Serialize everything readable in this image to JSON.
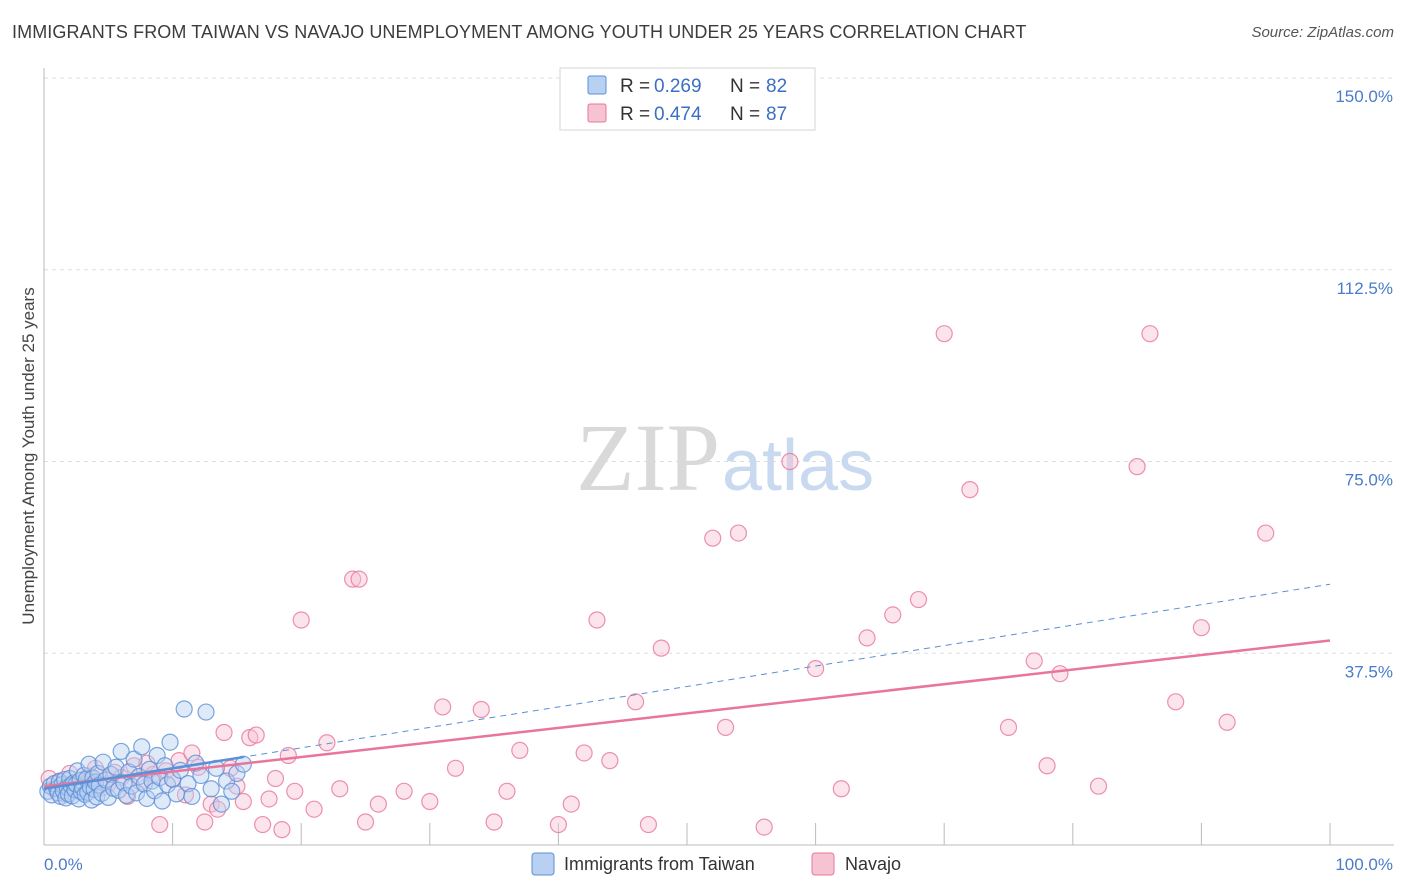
{
  "title": "IMMIGRANTS FROM TAIWAN VS NAVAJO UNEMPLOYMENT AMONG YOUTH UNDER 25 YEARS CORRELATION CHART",
  "source": "Source: ZipAtlas.com",
  "watermark": {
    "zip": "ZIP",
    "atlas": "atlas"
  },
  "colors": {
    "taiwan": "#5b8fd6",
    "taiwan_fill": "#b8d1f2",
    "navajo": "#e8759b",
    "navajo_fill": "#f6c3d3",
    "tick": "#4a7cc9",
    "grid": "#dddddd"
  },
  "legend": {
    "r_label": "R =",
    "n_label": "N =",
    "rows": [
      {
        "r": "0.269",
        "n": "82"
      },
      {
        "r": "0.474",
        "n": "87"
      }
    ]
  },
  "chart_data": {
    "type": "scatter",
    "title": "IMMIGRANTS FROM TAIWAN VS NAVAJO UNEMPLOYMENT AMONG YOUTH UNDER 25 YEARS CORRELATION CHART",
    "xlabel": "",
    "ylabel": "Unemployment Among Youth under 25 years",
    "xlim": [
      0,
      100
    ],
    "ylim": [
      0,
      150
    ],
    "x_tick_labels": [
      "0.0%",
      "100.0%"
    ],
    "y_ticks": [
      37.5,
      75.0,
      112.5,
      150.0
    ],
    "y_tick_labels": [
      "37.5%",
      "75.0%",
      "112.5%",
      "150.0%"
    ],
    "legend_position": "top-center",
    "series": [
      {
        "name": "Immigrants from Taiwan",
        "trend": {
          "x": [
            0,
            100
          ],
          "y": [
            11.0,
            51.0
          ],
          "style": "dashed"
        },
        "points": [
          [
            0.3,
            10.5
          ],
          [
            0.5,
            11.5
          ],
          [
            0.6,
            9.8
          ],
          [
            0.8,
            12.0
          ],
          [
            1.0,
            11.0
          ],
          [
            1.1,
            10.2
          ],
          [
            1.2,
            12.4
          ],
          [
            1.3,
            9.5
          ],
          [
            1.4,
            11.8
          ],
          [
            1.5,
            10.6
          ],
          [
            1.6,
            12.8
          ],
          [
            1.7,
            9.2
          ],
          [
            1.8,
            11.3
          ],
          [
            1.9,
            10.0
          ],
          [
            2.0,
            13.0
          ],
          [
            2.1,
            11.6
          ],
          [
            2.2,
            9.6
          ],
          [
            2.3,
            12.1
          ],
          [
            2.4,
            10.8
          ],
          [
            2.5,
            11.9
          ],
          [
            2.6,
            14.5
          ],
          [
            2.7,
            9.0
          ],
          [
            2.8,
            12.6
          ],
          [
            2.9,
            10.4
          ],
          [
            3.0,
            11.2
          ],
          [
            3.1,
            13.6
          ],
          [
            3.2,
            9.9
          ],
          [
            3.3,
            12.9
          ],
          [
            3.4,
            10.3
          ],
          [
            3.5,
            15.8
          ],
          [
            3.6,
            11.4
          ],
          [
            3.7,
            8.8
          ],
          [
            3.8,
            13.1
          ],
          [
            3.9,
            10.9
          ],
          [
            4.0,
            12.3
          ],
          [
            4.1,
            9.4
          ],
          [
            4.2,
            14.0
          ],
          [
            4.3,
            11.7
          ],
          [
            4.5,
            10.1
          ],
          [
            4.6,
            16.2
          ],
          [
            4.8,
            12.7
          ],
          [
            5.0,
            9.3
          ],
          [
            5.2,
            13.8
          ],
          [
            5.4,
            11.1
          ],
          [
            5.6,
            15.2
          ],
          [
            5.8,
            10.7
          ],
          [
            6.0,
            18.3
          ],
          [
            6.2,
            12.2
          ],
          [
            6.4,
            9.7
          ],
          [
            6.6,
            14.3
          ],
          [
            6.8,
            11.5
          ],
          [
            7.0,
            16.8
          ],
          [
            7.2,
            10.2
          ],
          [
            7.4,
            13.4
          ],
          [
            7.6,
            19.2
          ],
          [
            7.8,
            11.9
          ],
          [
            8.0,
            9.1
          ],
          [
            8.2,
            14.8
          ],
          [
            8.4,
            12.5
          ],
          [
            8.6,
            10.6
          ],
          [
            8.8,
            17.5
          ],
          [
            9.0,
            13.2
          ],
          [
            9.2,
            8.6
          ],
          [
            9.4,
            15.5
          ],
          [
            9.6,
            11.8
          ],
          [
            9.8,
            20.1
          ],
          [
            10.0,
            12.9
          ],
          [
            10.3,
            10.0
          ],
          [
            10.6,
            14.6
          ],
          [
            10.9,
            26.6
          ],
          [
            11.2,
            12.0
          ],
          [
            11.5,
            9.5
          ],
          [
            11.8,
            16.0
          ],
          [
            12.2,
            13.6
          ],
          [
            12.6,
            26.0
          ],
          [
            13.0,
            11.0
          ],
          [
            13.4,
            15.0
          ],
          [
            13.8,
            8.0
          ],
          [
            14.2,
            12.5
          ],
          [
            14.6,
            10.5
          ],
          [
            15.0,
            14.0
          ],
          [
            15.5,
            15.8
          ]
        ]
      },
      {
        "name": "Navajo",
        "trend": {
          "x": [
            0,
            100
          ],
          "y": [
            11.5,
            40.0
          ],
          "style": "solid"
        },
        "points": [
          [
            0.4,
            13.0
          ],
          [
            0.8,
            11.0
          ],
          [
            1.2,
            12.5
          ],
          [
            1.6,
            10.0
          ],
          [
            2.0,
            14.0
          ],
          [
            2.5,
            11.5
          ],
          [
            3.0,
            12.8
          ],
          [
            3.5,
            13.5
          ],
          [
            4.0,
            15.0
          ],
          [
            4.5,
            11.2
          ],
          [
            5.0,
            12.0
          ],
          [
            5.5,
            14.2
          ],
          [
            6.0,
            13.2
          ],
          [
            6.5,
            9.5
          ],
          [
            7.0,
            15.5
          ],
          [
            7.5,
            12.3
          ],
          [
            8.0,
            16.0
          ],
          [
            8.5,
            13.8
          ],
          [
            9.0,
            4.0
          ],
          [
            9.5,
            14.5
          ],
          [
            10.0,
            12.8
          ],
          [
            10.5,
            16.5
          ],
          [
            11.0,
            9.8
          ],
          [
            11.5,
            18.0
          ],
          [
            12.0,
            15.2
          ],
          [
            12.5,
            4.5
          ],
          [
            13.0,
            8.0
          ],
          [
            13.5,
            7.0
          ],
          [
            14.0,
            22.0
          ],
          [
            14.5,
            15.0
          ],
          [
            15.0,
            11.5
          ],
          [
            15.5,
            8.5
          ],
          [
            16.0,
            21.0
          ],
          [
            16.5,
            21.5
          ],
          [
            17.0,
            4.0
          ],
          [
            17.5,
            9.0
          ],
          [
            18.0,
            13.0
          ],
          [
            18.5,
            3.0
          ],
          [
            19.0,
            17.5
          ],
          [
            19.5,
            10.5
          ],
          [
            20.0,
            44.0
          ],
          [
            21.0,
            7.0
          ],
          [
            22.0,
            20.0
          ],
          [
            23.0,
            11.0
          ],
          [
            24.0,
            52.0
          ],
          [
            24.5,
            52.0
          ],
          [
            25.0,
            4.5
          ],
          [
            26.0,
            8.0
          ],
          [
            28.0,
            10.5
          ],
          [
            30.0,
            8.5
          ],
          [
            31.0,
            27.0
          ],
          [
            32.0,
            15.0
          ],
          [
            34.0,
            26.5
          ],
          [
            35.0,
            4.5
          ],
          [
            36.0,
            10.5
          ],
          [
            37.0,
            18.5
          ],
          [
            40.0,
            4.0
          ],
          [
            41.0,
            8.0
          ],
          [
            42.0,
            18.0
          ],
          [
            43.0,
            44.0
          ],
          [
            44.0,
            16.5
          ],
          [
            46.0,
            28.0
          ],
          [
            47.0,
            4.0
          ],
          [
            48.0,
            38.5
          ],
          [
            52.0,
            60.0
          ],
          [
            53.0,
            23.0
          ],
          [
            54.0,
            61.0
          ],
          [
            56.0,
            3.5
          ],
          [
            58.0,
            75.0
          ],
          [
            60.0,
            34.5
          ],
          [
            62.0,
            11.0
          ],
          [
            64.0,
            40.5
          ],
          [
            66.0,
            45.0
          ],
          [
            68.0,
            48.0
          ],
          [
            70.0,
            100.0
          ],
          [
            72.0,
            69.5
          ],
          [
            75.0,
            23.0
          ],
          [
            77.0,
            36.0
          ],
          [
            78.0,
            15.5
          ],
          [
            79.0,
            33.5
          ],
          [
            82.0,
            11.5
          ],
          [
            85.0,
            74.0
          ],
          [
            86.0,
            100.0
          ],
          [
            88.0,
            28.0
          ],
          [
            90.0,
            42.5
          ],
          [
            92.0,
            24.0
          ],
          [
            95.0,
            61.0
          ]
        ]
      }
    ]
  },
  "bottom_legend": [
    {
      "label": "Immigrants from Taiwan"
    },
    {
      "label": "Navajo"
    }
  ]
}
